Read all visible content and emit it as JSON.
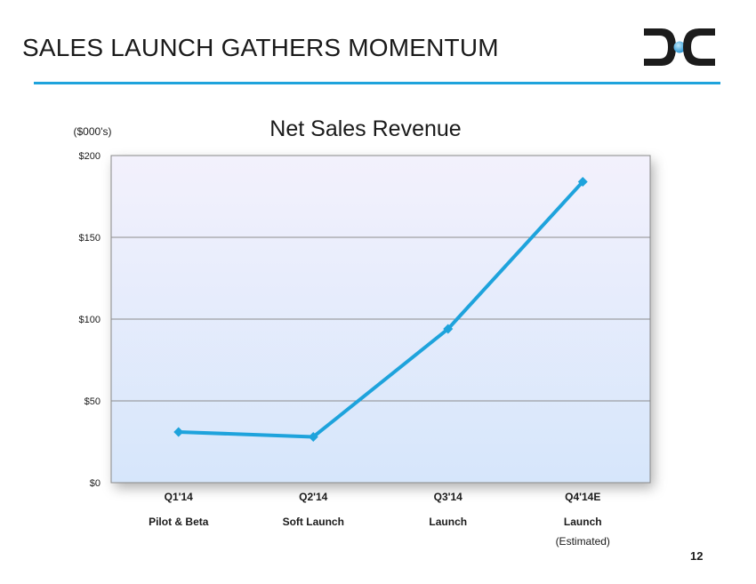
{
  "slide": {
    "title": "SALES LAUNCH GATHERS MOMENTUM",
    "page_number": "12",
    "logo": "dxc-logo",
    "accent_color": "#1ea3dc"
  },
  "chart_data": {
    "type": "line",
    "title": "Net Sales Revenue",
    "unit_label": "($000's)",
    "categories": [
      "Q1'14",
      "Q2'14",
      "Q3'14",
      "Q4'14E"
    ],
    "sublabels": [
      "Pilot & Beta",
      "Soft Launch",
      "Launch",
      "Launch"
    ],
    "sublabel_notes": [
      "",
      "",
      "",
      "(Estimated)"
    ],
    "series": [
      {
        "values": [
          31,
          28,
          94,
          184
        ],
        "color": "#1ea3dc",
        "marker": "diamond"
      }
    ],
    "ylim": [
      0,
      200
    ],
    "yticks": [
      {
        "value": 0,
        "label": "$0"
      },
      {
        "value": 50,
        "label": "$50"
      },
      {
        "value": 100,
        "label": "$100"
      },
      {
        "value": 150,
        "label": "$150"
      },
      {
        "value": 200,
        "label": "$200"
      }
    ],
    "grid": true,
    "legend": "none"
  }
}
